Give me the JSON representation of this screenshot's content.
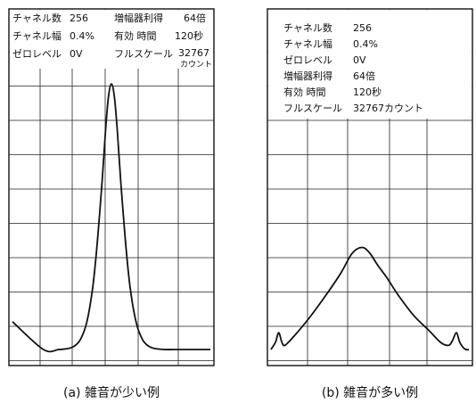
{
  "chart_data": [
    {
      "type": "line",
      "caption": "(a) 雑音が少い例",
      "readout": {
        "channels": {
          "label": "チャネル数",
          "value": "256"
        },
        "channel_width": {
          "label": "チャネル幅",
          "value": "0.4%"
        },
        "zero_level": {
          "label": "ゼロレベル",
          "value": "0V"
        },
        "gain": {
          "label": "増幅器利得",
          "value": "64倍"
        },
        "live_time": {
          "label": "有効 時間",
          "value": "120秒"
        },
        "full_scale": {
          "label": "フルスケール",
          "value": "32767",
          "unit": "カウント"
        }
      },
      "xlim": [
        0,
        256
      ],
      "ylim": [
        0,
        32767
      ],
      "x": [
        0,
        40,
        60,
        72,
        80,
        88,
        96,
        104,
        110,
        116,
        120,
        124,
        128,
        132,
        136,
        140,
        146,
        152,
        160,
        168,
        176,
        184,
        196,
        210,
        230,
        256
      ],
      "y": [
        3300,
        0,
        0,
        120,
        400,
        1200,
        3200,
        7500,
        13000,
        20000,
        25500,
        29800,
        31500,
        29800,
        25500,
        20000,
        13000,
        7500,
        3200,
        1200,
        400,
        120,
        0,
        0,
        0,
        0
      ]
    },
    {
      "type": "line",
      "caption": "(b) 雑音が多い例",
      "readout": {
        "channels": {
          "label": "チャネル数",
          "value": "256"
        },
        "channel_width": {
          "label": "チャネル幅",
          "value": "0.4%"
        },
        "zero_level": {
          "label": "ゼロレベル",
          "value": "0V"
        },
        "gain": {
          "label": "増幅器利得",
          "value": "64倍"
        },
        "live_time": {
          "label": "有効 時間",
          "value": "120秒"
        },
        "full_scale": {
          "label": "フルスケール",
          "value": "32767カウント"
        }
      },
      "xlim": [
        0,
        256
      ],
      "ylim": [
        0,
        32767
      ],
      "x": [
        0,
        6,
        10,
        14,
        18,
        30,
        50,
        70,
        90,
        105,
        118,
        128,
        138,
        150,
        165,
        185,
        205,
        220,
        230,
        235,
        240,
        244,
        248,
        252,
        256
      ],
      "y": [
        0,
        900,
        2000,
        900,
        500,
        1600,
        3800,
        6300,
        9000,
        11400,
        12100,
        11400,
        10000,
        8500,
        6400,
        4000,
        2200,
        800,
        500,
        1100,
        2000,
        900,
        300,
        0,
        0
      ]
    }
  ]
}
